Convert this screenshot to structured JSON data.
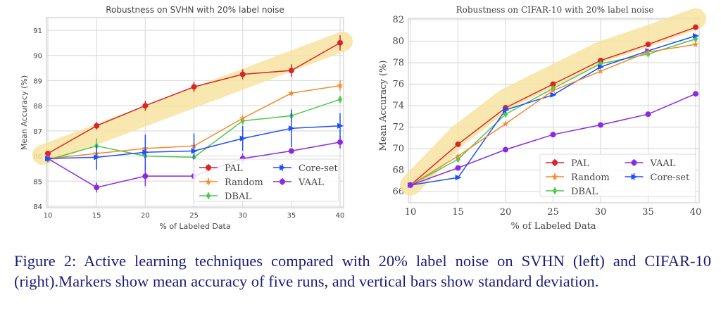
{
  "colors": {
    "PAL": "#d62728",
    "DBAL": "#4dc94d",
    "VAAL": "#8a2be2",
    "Random": "#f28a30",
    "Core-set": "#1f4fff",
    "highlight": "#f7e3a1",
    "grid": "#dddddd",
    "caption": "#1b1b7a"
  },
  "caption": "Figure 2: Active learning techniques compared with 20% label noise on SVHN (left) and CIFAR-10 (right).Markers show mean accuracy of five runs, and vertical bars show standard deviation.",
  "chart_data": [
    {
      "type": "line",
      "title": "Robustness on SVHN with 20% label noise",
      "xlabel": "% of Labeled Data",
      "ylabel": "Mean Accuracy (%)",
      "x": [
        10,
        15,
        20,
        25,
        30,
        35,
        40
      ],
      "xticks": [
        "10",
        "15",
        "20",
        "25",
        "30",
        "35",
        "40"
      ],
      "yticks": [
        "84",
        "85",
        "86",
        "87",
        "88",
        "89",
        "90",
        "91"
      ],
      "xlim": [
        10,
        40
      ],
      "ylim": [
        84,
        91.5
      ],
      "grid": true,
      "legend_position": "lower-right",
      "legend_order": [
        "PAL",
        "Random",
        "DBAL",
        "Core-set",
        "VAAL"
      ],
      "series": [
        {
          "name": "PAL",
          "marker": "circle",
          "values": [
            86.1,
            87.2,
            88.0,
            88.75,
            89.25,
            89.4,
            90.5
          ],
          "std": [
            0.1,
            0.15,
            0.2,
            0.2,
            0.2,
            0.25,
            0.3
          ]
        },
        {
          "name": "DBAL",
          "marker": "diamond",
          "values": [
            85.85,
            86.4,
            86.0,
            85.95,
            87.4,
            87.6,
            88.25
          ],
          "std": [
            0.1,
            0.3,
            0.1,
            0.1,
            0.15,
            0.25,
            0.15
          ]
        },
        {
          "name": "VAAL",
          "marker": "circle",
          "values": [
            85.9,
            84.75,
            85.2,
            85.2,
            85.9,
            86.2,
            86.55
          ],
          "std": [
            0.05,
            0.2,
            0.4,
            0.3,
            0.2,
            0.1,
            0.25
          ]
        },
        {
          "name": "Random",
          "marker": "star",
          "values": [
            85.9,
            86.1,
            86.3,
            86.4,
            87.5,
            88.5,
            88.8
          ],
          "std": [
            0.05,
            0.05,
            0.05,
            0.05,
            0.1,
            0.1,
            0.2
          ]
        },
        {
          "name": "Core-set",
          "marker": "triangle-right",
          "values": [
            85.9,
            85.95,
            86.15,
            86.2,
            86.7,
            87.1,
            87.2
          ],
          "std": [
            0.05,
            0.5,
            0.7,
            0.7,
            0.5,
            0.75,
            0.5
          ]
        }
      ],
      "highlight": {
        "series": "PAL",
        "description_band": "yellow band along PAL"
      }
    },
    {
      "type": "line",
      "title": "Robustness on CIFAR-10 with 20% label noise",
      "xlabel": "% of Labeled Data",
      "ylabel": "Mean Accuracy (%)",
      "x": [
        10,
        15,
        20,
        25,
        30,
        35,
        40
      ],
      "xticks": [
        "10",
        "15",
        "20",
        "25",
        "30",
        "35",
        "40"
      ],
      "yticks": [
        "66",
        "68",
        "70",
        "72",
        "74",
        "76",
        "78",
        "80",
        "82"
      ],
      "xlim": [
        10,
        40
      ],
      "ylim": [
        65.2,
        82
      ],
      "grid": true,
      "legend_position": "lower-right",
      "legend_order": [
        "PAL",
        "Random",
        "DBAL",
        "VAAL",
        "Core-set"
      ],
      "series": [
        {
          "name": "PAL",
          "marker": "circle",
          "values": [
            66.6,
            70.4,
            73.8,
            76.0,
            78.2,
            79.7,
            81.3
          ],
          "std": [
            0.1,
            0.1,
            0.1,
            0.1,
            0.1,
            0.1,
            0.1
          ]
        },
        {
          "name": "DBAL",
          "marker": "diamond",
          "values": [
            66.6,
            69.0,
            73.2,
            75.6,
            77.9,
            78.8,
            80.2
          ],
          "std": [
            0.1,
            0.2,
            0.2,
            0.2,
            0.2,
            0.2,
            0.2
          ]
        },
        {
          "name": "Core-set",
          "marker": "triangle-right",
          "values": [
            66.6,
            67.3,
            73.6,
            75.0,
            77.6,
            79.1,
            80.5
          ],
          "std": [
            0.1,
            0.1,
            0.3,
            0.1,
            0.2,
            0.2,
            0.1
          ]
        },
        {
          "name": "Random",
          "marker": "star",
          "values": [
            66.6,
            69.3,
            72.3,
            75.4,
            77.2,
            79.0,
            79.7
          ],
          "std": [
            0.1,
            0.1,
            0.1,
            0.1,
            0.1,
            0.1,
            0.1
          ]
        },
        {
          "name": "VAAL",
          "marker": "circle",
          "values": [
            66.6,
            68.2,
            69.9,
            71.3,
            72.2,
            73.2,
            75.1
          ],
          "std": [
            0.1,
            0.1,
            0.1,
            0.1,
            0.1,
            0.1,
            0.1
          ]
        }
      ],
      "highlight": {
        "series": "PAL",
        "description_band": "yellow band along PAL"
      }
    }
  ]
}
